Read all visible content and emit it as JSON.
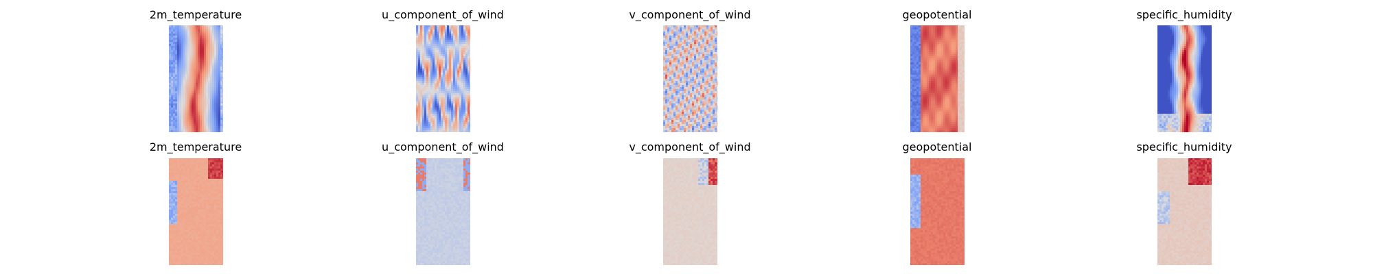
{
  "figure": {
    "colormap": "coolwarm",
    "colors": {
      "blue_end": "#3b4cc0",
      "neutral": "#dddddd",
      "red_end": "#b40426"
    },
    "rows": [
      {
        "panels": [
          {
            "title": "2m_temperature",
            "pattern": "temperature"
          },
          {
            "title": "u_component_of_wind",
            "pattern": "u_wind"
          },
          {
            "title": "v_component_of_wind",
            "pattern": "v_wind"
          },
          {
            "title": "geopotential",
            "pattern": "geopotential"
          },
          {
            "title": "specific_humidity",
            "pattern": "humidity"
          }
        ]
      },
      {
        "panels": [
          {
            "title": "2m_temperature",
            "pattern": "temperature_diff"
          },
          {
            "title": "u_component_of_wind",
            "pattern": "u_wind_diff"
          },
          {
            "title": "v_component_of_wind",
            "pattern": "v_wind_diff"
          },
          {
            "title": "geopotential",
            "pattern": "geopotential_diff"
          },
          {
            "title": "specific_humidity",
            "pattern": "humidity_diff"
          }
        ]
      }
    ]
  }
}
